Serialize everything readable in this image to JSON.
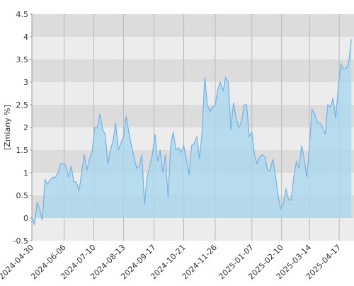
{
  "chart_data": {
    "type": "area",
    "y_label": "[Zmiany %]",
    "x": [
      "2024-04-30",
      "2024-05-03",
      "2024-05-06",
      "2024-05-09",
      "2024-05-12",
      "2024-05-15",
      "2024-05-18",
      "2024-05-21",
      "2024-05-24",
      "2024-05-27",
      "2024-05-30",
      "2024-06-02",
      "2024-06-05",
      "2024-06-08",
      "2024-06-11",
      "2024-06-14",
      "2024-06-17",
      "2024-06-20",
      "2024-06-23",
      "2024-06-26",
      "2024-06-29",
      "2024-07-02",
      "2024-07-05",
      "2024-07-08",
      "2024-07-11",
      "2024-07-14",
      "2024-07-17",
      "2024-07-20",
      "2024-07-23",
      "2024-07-26",
      "2024-07-29",
      "2024-08-01",
      "2024-08-04",
      "2024-08-07",
      "2024-08-10",
      "2024-08-13",
      "2024-08-16",
      "2024-08-19",
      "2024-08-22",
      "2024-08-25",
      "2024-08-28",
      "2024-08-31",
      "2024-09-03",
      "2024-09-06",
      "2024-09-09",
      "2024-09-12",
      "2024-09-15",
      "2024-09-18",
      "2024-09-21",
      "2024-09-24",
      "2024-09-27",
      "2024-09-30",
      "2024-10-03",
      "2024-10-06",
      "2024-10-09",
      "2024-10-12",
      "2024-10-15",
      "2024-10-18",
      "2024-10-21",
      "2024-10-24",
      "2024-10-27",
      "2024-10-30",
      "2024-11-02",
      "2024-11-05",
      "2024-11-08",
      "2024-11-11",
      "2024-11-14",
      "2024-11-17",
      "2024-11-20",
      "2024-11-23",
      "2024-11-26",
      "2024-11-29",
      "2024-12-02",
      "2024-12-05",
      "2024-12-08",
      "2024-12-11",
      "2024-12-14",
      "2024-12-17",
      "2024-12-20",
      "2024-12-23",
      "2024-12-26",
      "2024-12-29",
      "2025-01-01",
      "2025-01-04",
      "2025-01-07",
      "2025-01-10",
      "2025-01-13",
      "2025-01-16",
      "2025-01-19",
      "2025-01-22",
      "2025-01-25",
      "2025-01-28",
      "2025-01-31",
      "2025-02-03",
      "2025-02-06",
      "2025-02-09",
      "2025-02-12",
      "2025-02-15",
      "2025-02-18",
      "2025-02-21",
      "2025-02-24",
      "2025-02-27",
      "2025-03-02",
      "2025-03-05",
      "2025-03-08",
      "2025-03-11",
      "2025-03-14",
      "2025-03-17",
      "2025-03-20",
      "2025-03-23",
      "2025-03-26",
      "2025-03-29",
      "2025-04-01",
      "2025-04-04",
      "2025-04-07",
      "2025-04-10",
      "2025-04-13",
      "2025-04-16",
      "2025-04-19",
      "2025-04-22",
      "2025-04-25",
      "2025-04-28",
      "2025-05-01"
    ],
    "values": [
      0.0,
      -0.15,
      0.35,
      0.2,
      -0.05,
      0.85,
      0.75,
      0.85,
      0.9,
      0.9,
      1.0,
      1.2,
      1.2,
      1.15,
      0.9,
      1.15,
      0.8,
      0.8,
      0.6,
      1.0,
      1.4,
      1.05,
      1.3,
      1.45,
      2.0,
      2.0,
      2.3,
      1.95,
      1.85,
      1.2,
      1.5,
      1.7,
      2.1,
      1.5,
      1.65,
      1.8,
      2.25,
      1.9,
      1.6,
      1.35,
      1.1,
      1.15,
      1.4,
      0.3,
      0.9,
      1.15,
      1.4,
      1.85,
      1.25,
      1.5,
      1.0,
      1.4,
      0.45,
      1.6,
      1.9,
      1.5,
      1.55,
      1.45,
      1.6,
      1.3,
      0.95,
      1.6,
      1.65,
      1.8,
      1.3,
      1.9,
      3.1,
      2.5,
      2.35,
      2.45,
      2.5,
      2.85,
      3.0,
      2.8,
      3.1,
      3.0,
      1.95,
      2.55,
      2.2,
      2.0,
      2.1,
      2.5,
      2.5,
      1.8,
      1.9,
      1.4,
      1.2,
      1.35,
      1.4,
      1.35,
      1.05,
      1.05,
      1.3,
      0.95,
      0.5,
      0.2,
      0.3,
      0.65,
      0.4,
      0.4,
      0.9,
      1.25,
      1.1,
      1.6,
      1.3,
      0.9,
      1.6,
      2.4,
      2.3,
      2.1,
      2.1,
      2.0,
      1.85,
      2.5,
      2.45,
      2.65,
      2.2,
      2.9,
      3.4,
      3.3,
      3.3,
      3.45,
      3.95
    ],
    "color": "#6fb3e8",
    "fill": "#a9d8ee",
    "xlim": [
      "2024-04-30",
      "2025-05-04"
    ],
    "xticks": [
      "2024-04-30",
      "2024-06-06",
      "2024-07-10",
      "2024-08-13",
      "2024-09-17",
      "2024-10-21",
      "2024-11-26",
      "2025-01-07",
      "2025-02-10",
      "2025-03-14",
      "2025-04-17"
    ],
    "ylim": [
      -0.5,
      4.5
    ],
    "yticks": [
      -0.5,
      0.0,
      0.5,
      1.0,
      1.5,
      2.0,
      2.5,
      3.0,
      3.5,
      4.0,
      4.5
    ],
    "grid": true,
    "bands": true
  }
}
